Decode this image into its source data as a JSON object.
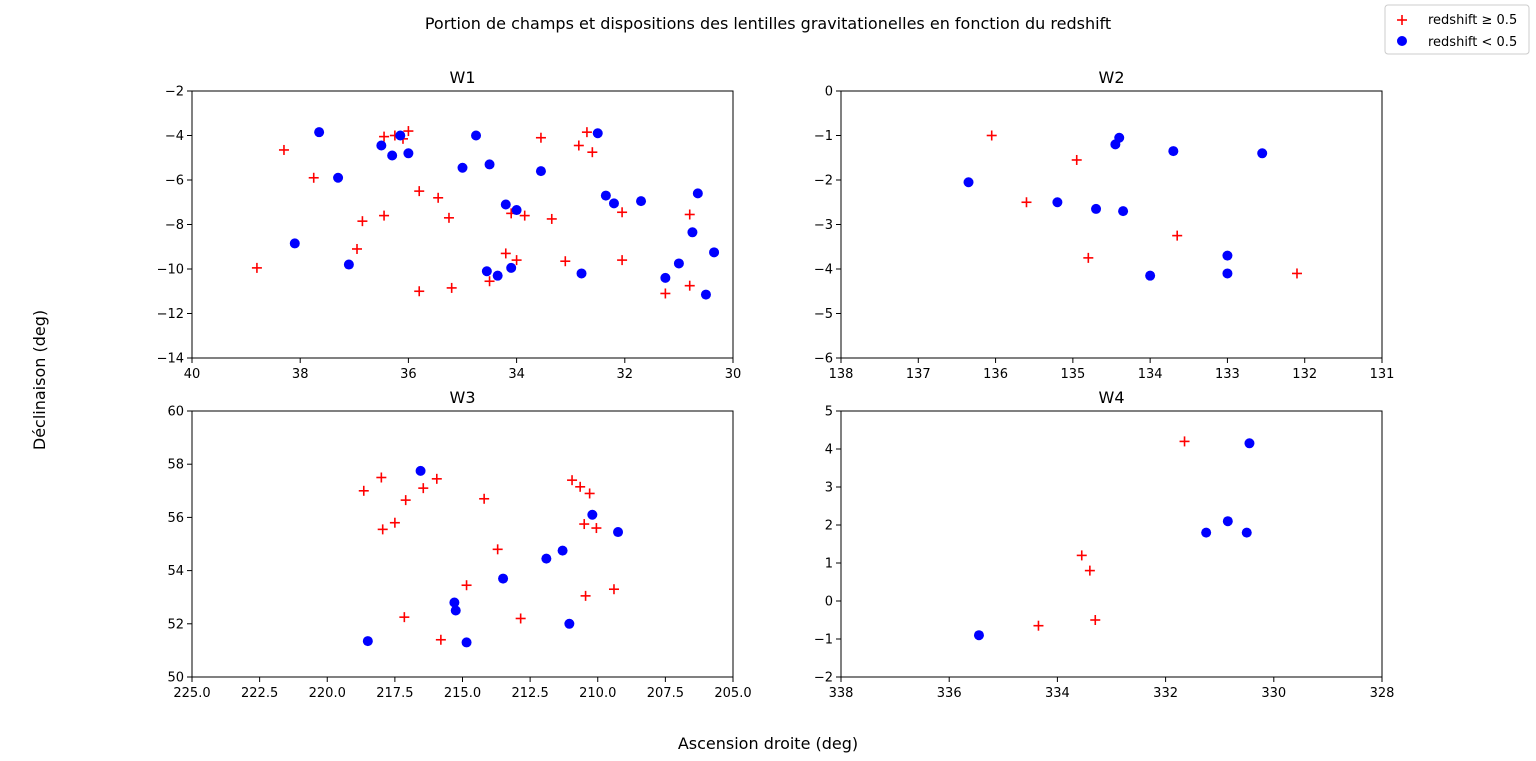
{
  "figure": {
    "title": "Portion de champs et dispositions des lentilles gravitationelles en fonction du redshift",
    "xlabel": "Ascension droite (deg)",
    "ylabel": "Déclinaison (deg)",
    "legend": {
      "placement": "top-right",
      "entries": [
        {
          "label": "redshift ≥ 0.5",
          "marker": "plus",
          "color": "#ff0000"
        },
        {
          "label": "redshift < 0.5",
          "marker": "circle",
          "color": "#0000ff"
        }
      ]
    }
  },
  "chart_data": [
    {
      "type": "scatter",
      "title": "W1",
      "xlim": [
        40,
        30
      ],
      "ylim": [
        -14,
        -2
      ],
      "xticks": [
        40,
        38,
        36,
        34,
        32,
        30
      ],
      "xtick_labels": [
        "40",
        "38",
        "36",
        "34",
        "32",
        "30"
      ],
      "yticks": [
        -14,
        -12,
        -10,
        -8,
        -6,
        -4,
        -2
      ],
      "ytick_labels": [
        "−14",
        "−12",
        "−10",
        "−8",
        "−6",
        "−4",
        "−2"
      ],
      "grid": false,
      "series": [
        {
          "name": "redshift ≥ 0.5",
          "marker": "plus",
          "color": "#ff0000",
          "points": [
            [
              38.8,
              -9.95
            ],
            [
              38.3,
              -4.65
            ],
            [
              37.75,
              -5.9
            ],
            [
              36.85,
              -7.85
            ],
            [
              36.95,
              -9.1
            ],
            [
              36.45,
              -4.05
            ],
            [
              36.45,
              -7.6
            ],
            [
              36.25,
              -4.0
            ],
            [
              36.1,
              -4.15
            ],
            [
              36.0,
              -3.8
            ],
            [
              35.8,
              -6.5
            ],
            [
              35.8,
              -11.0
            ],
            [
              35.45,
              -6.8
            ],
            [
              35.25,
              -7.7
            ],
            [
              35.2,
              -10.85
            ],
            [
              34.5,
              -10.55
            ],
            [
              34.2,
              -9.3
            ],
            [
              34.1,
              -7.5
            ],
            [
              34.0,
              -9.6
            ],
            [
              33.85,
              -7.6
            ],
            [
              33.55,
              -4.1
            ],
            [
              33.35,
              -7.75
            ],
            [
              33.1,
              -9.65
            ],
            [
              32.85,
              -4.45
            ],
            [
              32.7,
              -3.85
            ],
            [
              32.6,
              -4.75
            ],
            [
              32.05,
              -7.45
            ],
            [
              32.05,
              -9.6
            ],
            [
              31.25,
              -11.1
            ],
            [
              30.8,
              -7.55
            ],
            [
              30.8,
              -10.75
            ]
          ]
        },
        {
          "name": "redshift < 0.5",
          "marker": "circle",
          "color": "#0000ff",
          "points": [
            [
              37.65,
              -3.85
            ],
            [
              37.3,
              -5.9
            ],
            [
              38.1,
              -8.85
            ],
            [
              37.1,
              -9.8
            ],
            [
              36.5,
              -4.45
            ],
            [
              36.3,
              -4.9
            ],
            [
              36.15,
              -4.0
            ],
            [
              36.0,
              -4.8
            ],
            [
              35.0,
              -5.45
            ],
            [
              34.75,
              -4.0
            ],
            [
              34.5,
              -5.3
            ],
            [
              34.2,
              -7.1
            ],
            [
              34.0,
              -7.35
            ],
            [
              33.55,
              -5.6
            ],
            [
              34.55,
              -10.1
            ],
            [
              34.35,
              -10.3
            ],
            [
              34.1,
              -9.95
            ],
            [
              32.8,
              -10.2
            ],
            [
              32.5,
              -3.9
            ],
            [
              32.35,
              -6.7
            ],
            [
              32.2,
              -7.05
            ],
            [
              31.7,
              -6.95
            ],
            [
              31.0,
              -9.75
            ],
            [
              31.25,
              -10.4
            ],
            [
              30.75,
              -8.35
            ],
            [
              30.65,
              -6.6
            ],
            [
              30.5,
              -11.15
            ],
            [
              30.35,
              -9.25
            ]
          ]
        }
      ]
    },
    {
      "type": "scatter",
      "title": "W2",
      "xlim": [
        138,
        131
      ],
      "ylim": [
        -6,
        0
      ],
      "xticks": [
        138,
        137,
        136,
        135,
        134,
        133,
        132,
        131
      ],
      "xtick_labels": [
        "138",
        "137",
        "136",
        "135",
        "134",
        "133",
        "132",
        "131"
      ],
      "yticks": [
        -6,
        -5,
        -4,
        -3,
        -2,
        -1,
        0
      ],
      "ytick_labels": [
        "−6",
        "−5",
        "−4",
        "−3",
        "−2",
        "−1",
        "0"
      ],
      "grid": false,
      "series": [
        {
          "name": "redshift ≥ 0.5",
          "marker": "plus",
          "color": "#ff0000",
          "points": [
            [
              136.05,
              -1.0
            ],
            [
              135.6,
              -2.5
            ],
            [
              134.95,
              -1.55
            ],
            [
              134.8,
              -3.75
            ],
            [
              133.65,
              -3.25
            ],
            [
              132.1,
              -4.1
            ]
          ]
        },
        {
          "name": "redshift < 0.5",
          "marker": "circle",
          "color": "#0000ff",
          "points": [
            [
              136.35,
              -2.05
            ],
            [
              135.2,
              -2.5
            ],
            [
              134.7,
              -2.65
            ],
            [
              134.45,
              -1.2
            ],
            [
              134.4,
              -1.05
            ],
            [
              134.35,
              -2.7
            ],
            [
              134.0,
              -4.15
            ],
            [
              133.7,
              -1.35
            ],
            [
              133.0,
              -3.7
            ],
            [
              133.0,
              -4.1
            ],
            [
              132.55,
              -1.4
            ]
          ]
        }
      ]
    },
    {
      "type": "scatter",
      "title": "W3",
      "xlim": [
        225,
        205
      ],
      "ylim": [
        50,
        60
      ],
      "xticks": [
        225,
        222.5,
        220,
        217.5,
        215,
        212.5,
        210,
        207.5,
        205
      ],
      "xtick_labels": [
        "225.0",
        "222.5",
        "220.0",
        "217.5",
        "215.0",
        "212.5",
        "210.0",
        "207.5",
        "205.0"
      ],
      "yticks": [
        50,
        52,
        54,
        56,
        58,
        60
      ],
      "ytick_labels": [
        "50",
        "52",
        "54",
        "56",
        "58",
        "60"
      ],
      "grid": false,
      "series": [
        {
          "name": "redshift ≥ 0.5",
          "marker": "plus",
          "color": "#ff0000",
          "points": [
            [
              218.65,
              57.0
            ],
            [
              218.0,
              57.5
            ],
            [
              217.95,
              55.55
            ],
            [
              217.5,
              55.8
            ],
            [
              217.1,
              56.65
            ],
            [
              217.15,
              52.25
            ],
            [
              216.45,
              57.1
            ],
            [
              215.95,
              57.45
            ],
            [
              215.8,
              51.4
            ],
            [
              214.85,
              53.45
            ],
            [
              214.2,
              56.7
            ],
            [
              213.7,
              54.8
            ],
            [
              212.85,
              52.2
            ],
            [
              210.95,
              57.4
            ],
            [
              210.65,
              57.15
            ],
            [
              210.5,
              55.75
            ],
            [
              210.45,
              53.05
            ],
            [
              210.3,
              56.9
            ],
            [
              210.05,
              55.6
            ],
            [
              209.4,
              53.3
            ]
          ]
        },
        {
          "name": "redshift < 0.5",
          "marker": "circle",
          "color": "#0000ff",
          "points": [
            [
              218.5,
              51.35
            ],
            [
              216.55,
              57.75
            ],
            [
              215.3,
              52.8
            ],
            [
              215.25,
              52.5
            ],
            [
              214.85,
              51.3
            ],
            [
              213.5,
              53.7
            ],
            [
              211.9,
              54.45
            ],
            [
              211.3,
              54.75
            ],
            [
              211.05,
              52.0
            ],
            [
              210.2,
              56.1
            ],
            [
              209.25,
              55.45
            ]
          ]
        }
      ]
    },
    {
      "type": "scatter",
      "title": "W4",
      "xlim": [
        338,
        328
      ],
      "ylim": [
        -2,
        5
      ],
      "xticks": [
        338,
        336,
        334,
        332,
        330,
        328
      ],
      "xtick_labels": [
        "338",
        "336",
        "334",
        "332",
        "330",
        "328"
      ],
      "yticks": [
        -2,
        -1,
        0,
        1,
        2,
        3,
        4,
        5
      ],
      "ytick_labels": [
        "−2",
        "−1",
        "0",
        "1",
        "2",
        "3",
        "4",
        "5"
      ],
      "grid": false,
      "series": [
        {
          "name": "redshift ≥ 0.5",
          "marker": "plus",
          "color": "#ff0000",
          "points": [
            [
              334.35,
              -0.65
            ],
            [
              333.55,
              1.2
            ],
            [
              333.4,
              0.8
            ],
            [
              333.3,
              -0.5
            ],
            [
              331.65,
              4.2
            ]
          ]
        },
        {
          "name": "redshift < 0.5",
          "marker": "circle",
          "color": "#0000ff",
          "points": [
            [
              335.45,
              -0.9
            ],
            [
              331.25,
              1.8
            ],
            [
              330.85,
              2.1
            ],
            [
              330.5,
              1.8
            ],
            [
              330.45,
              4.15
            ]
          ]
        }
      ]
    }
  ]
}
